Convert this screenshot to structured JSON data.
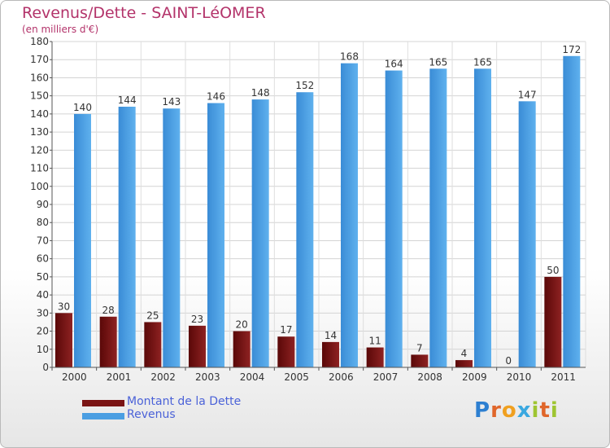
{
  "chart_data": {
    "type": "bar",
    "title": "Revenus/Dette - SAINT-LéOMER",
    "subtitle": "(en milliers d'€)",
    "categories": [
      "2000",
      "2001",
      "2002",
      "2003",
      "2004",
      "2005",
      "2006",
      "2007",
      "2008",
      "2009",
      "2010",
      "2011"
    ],
    "series": [
      {
        "name": "Montant de la Dette",
        "color": "#7a1414",
        "values": [
          30,
          28,
          25,
          23,
          20,
          17,
          14,
          11,
          7,
          4,
          0,
          50
        ]
      },
      {
        "name": "Revenus",
        "color": "#4a9ee2",
        "values": [
          140,
          144,
          143,
          146,
          148,
          152,
          168,
          164,
          165,
          165,
          147,
          172
        ]
      }
    ],
    "ylim": [
      0,
      180
    ],
    "yticks": [
      0,
      10,
      20,
      30,
      40,
      50,
      60,
      70,
      80,
      90,
      100,
      110,
      120,
      130,
      140,
      150,
      160,
      170,
      180
    ],
    "grid": true,
    "legend_position": "bottom-left"
  },
  "logo": {
    "text": "Proxiti",
    "letters": [
      "P",
      "r",
      "o",
      "x",
      "i",
      "t",
      "i"
    ],
    "colors": [
      "#2d7fd1",
      "#e0662a",
      "#f0a020",
      "#3aa8e0",
      "#9ec531",
      "#e0662a",
      "#9ec531"
    ]
  }
}
